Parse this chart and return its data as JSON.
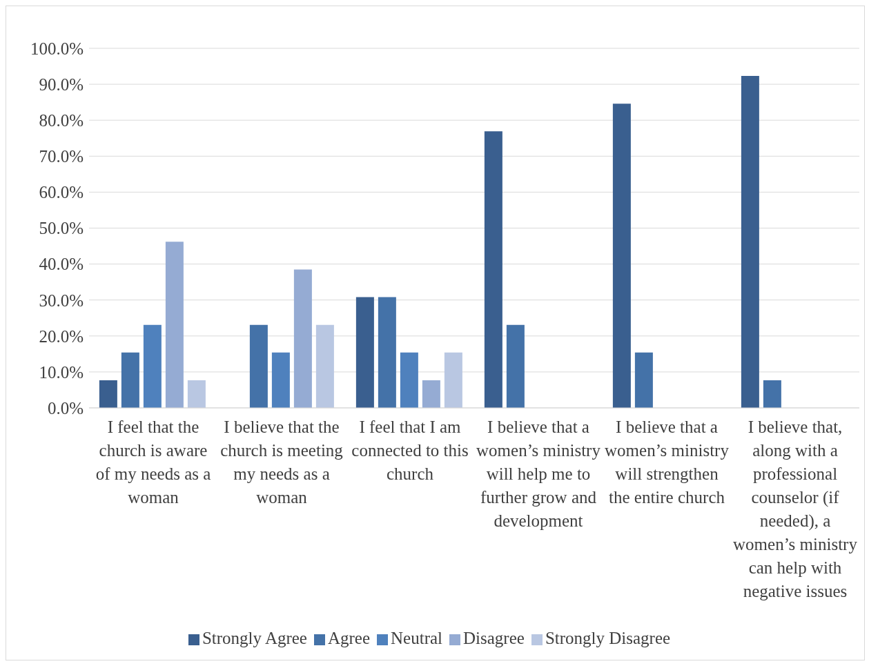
{
  "chart_data": {
    "type": "bar",
    "categories": [
      "I feel that the church is aware of my needs as a woman",
      "I believe that the church is meeting my needs as a woman",
      "I feel that I am connected to this church",
      "I believe that a women’s ministry will help me to further grow and development",
      "I believe that a women’s ministry will strengthen the entire church",
      "I believe that, along with a professional counselor (if needed), a women’s ministry can help with negative issues"
    ],
    "series": [
      {
        "name": "Strongly Agree",
        "color": "#3a5f8f",
        "values": [
          7.7,
          0,
          30.8,
          76.9,
          84.6,
          92.3
        ]
      },
      {
        "name": "Agree",
        "color": "#4472a8",
        "values": [
          15.4,
          23.1,
          30.8,
          23.1,
          15.4,
          7.7
        ]
      },
      {
        "name": "Neutral",
        "color": "#4f81bd",
        "values": [
          23.1,
          15.4,
          15.4,
          0,
          0,
          0
        ]
      },
      {
        "name": "Disagree",
        "color": "#95abd3",
        "values": [
          46.2,
          38.5,
          7.7,
          0,
          0,
          0
        ]
      },
      {
        "name": "Strongly Disagree",
        "color": "#b9c7e2",
        "values": [
          7.7,
          23.1,
          15.4,
          0,
          0,
          0
        ]
      }
    ],
    "ylim": [
      0,
      100
    ],
    "yticks": [
      {
        "value": 0,
        "label": "0.0%"
      },
      {
        "value": 10,
        "label": "10.0%"
      },
      {
        "value": 20,
        "label": "20.0%"
      },
      {
        "value": 30,
        "label": "30.0%"
      },
      {
        "value": 40,
        "label": "40.0%"
      },
      {
        "value": 50,
        "label": "50.0%"
      },
      {
        "value": 60,
        "label": "60.0%"
      },
      {
        "value": 70,
        "label": "70.0%"
      },
      {
        "value": 80,
        "label": "80.0%"
      },
      {
        "value": 90,
        "label": "90.0%"
      },
      {
        "value": 100,
        "label": "100.0%"
      }
    ],
    "grid": "y",
    "legend": "bottom"
  }
}
